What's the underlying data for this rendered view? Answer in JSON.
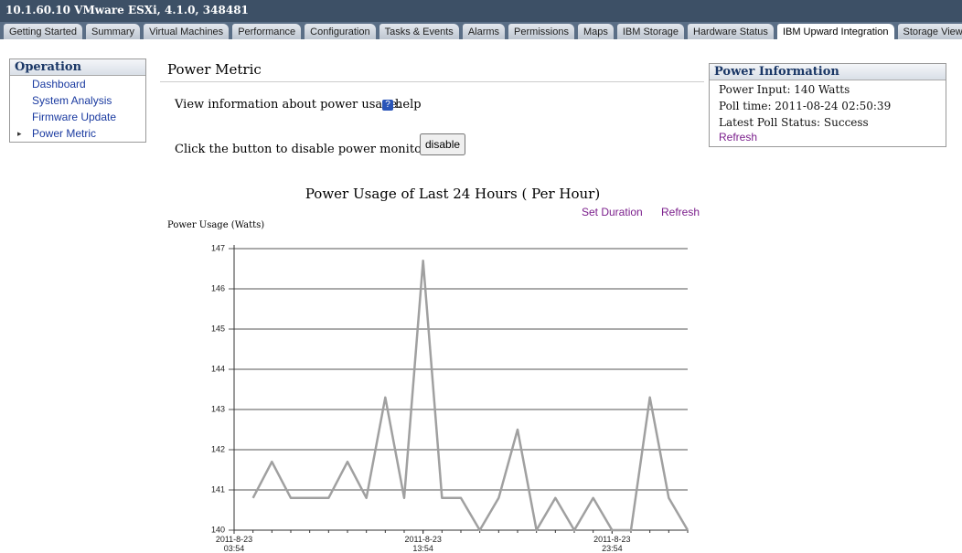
{
  "header": {
    "title": "10.1.60.10 VMware ESXi, 4.1.0, 348481"
  },
  "tabs": [
    "Getting Started",
    "Summary",
    "Virtual Machines",
    "Performance",
    "Configuration",
    "Tasks & Events",
    "Alarms",
    "Permissions",
    "Maps",
    "IBM Storage",
    "Hardware Status",
    "IBM Upward Integration",
    "Storage Views"
  ],
  "active_tab": 11,
  "sidebar": {
    "title": "Operation",
    "items": [
      "Dashboard",
      "System Analysis",
      "Firmware Update",
      "Power Metric"
    ],
    "selected": 3
  },
  "main": {
    "title": "Power Metric",
    "info_text": "View information about power usage.",
    "help_link": "help",
    "disable_text": "Click the button to disable power monitoring.",
    "disable_button": "disable",
    "set_duration_link": "Set Duration",
    "refresh_link": "Refresh"
  },
  "power_information": {
    "title": "Power Information",
    "lines": [
      "Power Input: 140 Watts",
      "Poll time: 2011-08-24 02:50:39",
      "Latest Poll Status: Success"
    ],
    "refresh_link": "Refresh"
  },
  "chart_data": {
    "type": "line",
    "title": "Power Usage of Last 24 Hours ( Per Hour)",
    "y_label": "Power Usage (Watts)",
    "x": [
      1,
      2,
      3,
      4,
      5,
      6,
      7,
      8,
      9,
      10,
      11,
      12,
      13,
      14,
      15,
      16,
      17,
      18,
      19,
      20,
      21,
      22,
      23,
      24
    ],
    "values": [
      140.8,
      141.7,
      140.8,
      140.8,
      140.8,
      141.7,
      140.8,
      143.3,
      140.8,
      146.7,
      140.8,
      140.8,
      140.0,
      140.8,
      142.5,
      140.0,
      140.8,
      140.0,
      140.8,
      140.0,
      140.0,
      143.3,
      140.8,
      140.0
    ],
    "color": "#a0a0a0",
    "xlim": [
      0,
      24
    ],
    "xticks": [
      {
        "value": 0,
        "label": "2011-8-23\n03:54"
      },
      {
        "value": 10,
        "label": "2011-8-23\n13:54"
      },
      {
        "value": 20,
        "label": "2011-8-23\n23:54"
      }
    ],
    "ylim": [
      140,
      147
    ],
    "yticks": [
      140,
      141,
      142,
      143,
      144,
      145,
      146,
      147
    ],
    "grid": true
  }
}
